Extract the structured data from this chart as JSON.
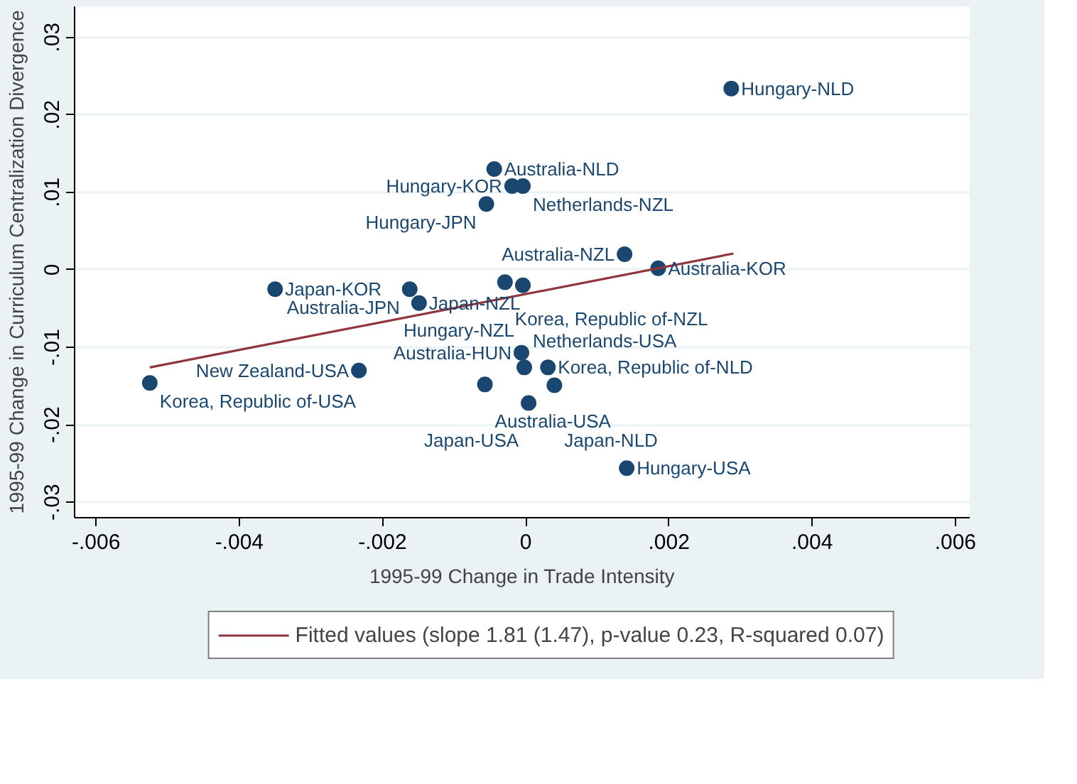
{
  "chart_data": {
    "type": "scatter",
    "xlabel": "1995-99 Change in Trade Intensity",
    "ylabel": "1995-99 Change in Curriculum Centralization Divergence",
    "xlim": [
      -0.0063,
      0.0062
    ],
    "ylim": [
      -0.032,
      0.034
    ],
    "xticks": [
      {
        "value": -0.006,
        "label": "-.006"
      },
      {
        "value": -0.004,
        "label": "-.004"
      },
      {
        "value": -0.002,
        "label": "-.002"
      },
      0,
      {
        "value": 0.002,
        "label": ".002"
      },
      {
        "value": 0.004,
        "label": ".004"
      },
      {
        "value": 0.006,
        "label": ".006"
      }
    ],
    "yticks": [
      {
        "value": -0.03,
        "label": "-.03"
      },
      {
        "value": -0.02,
        "label": "-.02"
      },
      {
        "value": -0.01,
        "label": "-.01"
      },
      0,
      {
        "value": 0.01,
        "label": ".01"
      },
      {
        "value": 0.02,
        "label": ".02"
      },
      {
        "value": 0.03,
        "label": ".03"
      }
    ],
    "grid": "y",
    "legend": "bottom",
    "series": [
      {
        "marker": "circle",
        "color": "#1a476f",
        "x": [
          0.00287,
          -0.00044,
          -0.00019,
          -4e-05,
          -0.00055,
          0.00138,
          0.00185,
          -0.0035,
          -0.00162,
          -0.00149,
          -0.00029,
          -4e-05,
          -0.00525,
          -0.00233,
          -0.00057,
          -6e-05,
          -2e-05,
          0.00031,
          0.0004,
          4e-05,
          0.00141
        ],
        "values": [
          0.0234,
          0.013,
          0.0108,
          0.0108,
          0.0085,
          0.002,
          0.0002,
          -0.0025,
          -0.0025,
          -0.0043,
          -0.0016,
          -0.002,
          -0.0146,
          -0.013,
          -0.0148,
          -0.0107,
          -0.0126,
          -0.0126,
          -0.0149,
          -0.0172,
          -0.0256
        ]
      },
      {
        "type": "line",
        "name": "Fitted values (slope 1.81 (1.47), p-value 0.23, R-squared 0.07)",
        "color": "#90353b",
        "x": [
          -0.00525,
          0.0029
        ],
        "values": [
          -0.0126,
          0.0021
        ]
      }
    ],
    "annotations": [
      {
        "text": "Hungary-NLD",
        "x": 0.00287,
        "y": 0.0234
      },
      {
        "text": "Australia-NLD",
        "x": -0.00044,
        "y": 0.013
      },
      {
        "text": "Hungary-KOR",
        "x": -0.00019,
        "y": 0.0108
      },
      {
        "text": "Netherlands-NZL",
        "x": -4e-05,
        "y": 0.0108
      },
      {
        "text": "Hungary-JPN",
        "x": -0.00055,
        "y": 0.0085
      },
      {
        "text": "Australia-NZL",
        "x": 0.00138,
        "y": 0.002
      },
      {
        "text": "Australia-KOR",
        "x": 0.00185,
        "y": 0.0002
      },
      {
        "text": "Japan-KOR",
        "x": -0.0035,
        "y": -0.0025
      },
      {
        "text": "Australia-JPN",
        "x": -0.00162,
        "y": -0.0025
      },
      {
        "text": "Japan-NZL",
        "x": -0.00149,
        "y": -0.0043
      },
      {
        "text": "Korea, Republic of-NZL",
        "x": -0.00029,
        "y": -0.0016
      },
      {
        "text": "Netherlands-USA",
        "x": -4e-05,
        "y": -0.002
      },
      {
        "text": "Korea, Republic of-USA",
        "x": -0.00525,
        "y": -0.0146
      },
      {
        "text": "New Zealand-USA",
        "x": -0.00233,
        "y": -0.013
      },
      {
        "text": "Australia-USA",
        "x": -0.00057,
        "y": -0.0148
      },
      {
        "text": "Australia-HUN",
        "x": -6e-05,
        "y": -0.0107
      },
      {
        "text": "Hungary-NZL",
        "x": -2e-05,
        "y": -0.0126
      },
      {
        "text": "Korea, Republic of-NLD",
        "x": 0.00031,
        "y": -0.0126
      },
      {
        "text": "Japan-NLD",
        "x": 0.0004,
        "y": -0.0149
      },
      {
        "text": "Japan-USA",
        "x": 4e-05,
        "y": -0.0172
      },
      {
        "text": "Hungary-USA",
        "x": 0.00141,
        "y": -0.0256
      }
    ]
  }
}
